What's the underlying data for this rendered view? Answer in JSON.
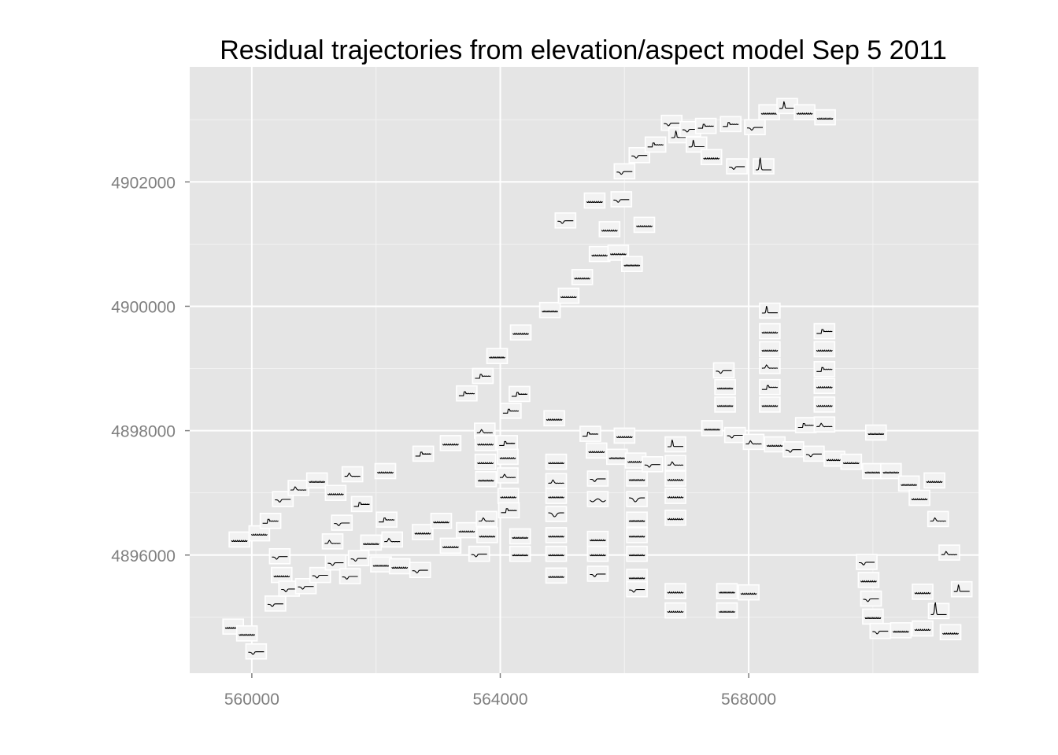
{
  "chart_data": {
    "type": "scatter",
    "subtype": "glyph-map",
    "title": "Residual trajectories from elevation/aspect model Sep 5 2011",
    "xlabel": "",
    "ylabel": "",
    "xlim": [
      559000,
      571700
    ],
    "ylim": [
      4894100,
      4903850
    ],
    "x_ticks": [
      560000,
      564000,
      568000
    ],
    "x_tick_labels": [
      "560000",
      "564000",
      "568000"
    ],
    "y_ticks": [
      4896000,
      4898000,
      4900000,
      4902000
    ],
    "y_tick_labels": [
      "4896000",
      "4898000",
      "4900000",
      "4902000"
    ],
    "grid": true,
    "legend": "none",
    "colors": {
      "panel": "#e5e5e5",
      "grid": "#ffffff",
      "glyph_box": "#f2f2f2",
      "line": "#000000",
      "tick_text": "#7f7f7f"
    },
    "glyph_shapes": [
      "flat",
      "dip",
      "bump",
      "spike",
      "bigspike",
      "step",
      "vdip",
      "wave"
    ],
    "points": [
      {
        "x": 559700,
        "y": 4894850,
        "s": "flat"
      },
      {
        "x": 559920,
        "y": 4894740,
        "s": "flat"
      },
      {
        "x": 560070,
        "y": 4894450,
        "s": "dip"
      },
      {
        "x": 559800,
        "y": 4896250,
        "s": "flat"
      },
      {
        "x": 560120,
        "y": 4896350,
        "s": "flat"
      },
      {
        "x": 560300,
        "y": 4896550,
        "s": "step"
      },
      {
        "x": 560380,
        "y": 4895220,
        "s": "dip"
      },
      {
        "x": 560450,
        "y": 4895980,
        "s": "dip"
      },
      {
        "x": 560480,
        "y": 4895680,
        "s": "flat"
      },
      {
        "x": 560600,
        "y": 4895460,
        "s": "dip"
      },
      {
        "x": 560870,
        "y": 4895500,
        "s": "dip"
      },
      {
        "x": 561100,
        "y": 4895680,
        "s": "dip"
      },
      {
        "x": 560500,
        "y": 4896900,
        "s": "dip"
      },
      {
        "x": 560750,
        "y": 4897080,
        "s": "bump"
      },
      {
        "x": 561050,
        "y": 4897200,
        "s": "flat"
      },
      {
        "x": 561350,
        "y": 4897000,
        "s": "flat"
      },
      {
        "x": 561300,
        "y": 4896220,
        "s": "bump"
      },
      {
        "x": 561350,
        "y": 4895880,
        "s": "dip"
      },
      {
        "x": 561450,
        "y": 4896520,
        "s": "dip"
      },
      {
        "x": 561580,
        "y": 4895660,
        "s": "dip"
      },
      {
        "x": 561620,
        "y": 4897300,
        "s": "bump"
      },
      {
        "x": 561770,
        "y": 4896820,
        "s": "step"
      },
      {
        "x": 561720,
        "y": 4895950,
        "s": "dip"
      },
      {
        "x": 561920,
        "y": 4896200,
        "s": "flat"
      },
      {
        "x": 562080,
        "y": 4895850,
        "s": "flat"
      },
      {
        "x": 562150,
        "y": 4897350,
        "s": "flat"
      },
      {
        "x": 562170,
        "y": 4896570,
        "s": "step"
      },
      {
        "x": 562260,
        "y": 4896250,
        "s": "bump"
      },
      {
        "x": 562380,
        "y": 4895820,
        "s": "flat"
      },
      {
        "x": 562710,
        "y": 4895760,
        "s": "dip"
      },
      {
        "x": 562750,
        "y": 4896370,
        "s": "flat"
      },
      {
        "x": 562760,
        "y": 4897630,
        "s": "step"
      },
      {
        "x": 563050,
        "y": 4896550,
        "s": "flat"
      },
      {
        "x": 563200,
        "y": 4897800,
        "s": "flat"
      },
      {
        "x": 563200,
        "y": 4896150,
        "s": "flat"
      },
      {
        "x": 563460,
        "y": 4896400,
        "s": "flat"
      },
      {
        "x": 563460,
        "y": 4898600,
        "s": "step"
      },
      {
        "x": 563660,
        "y": 4896020,
        "s": "dip"
      },
      {
        "x": 563720,
        "y": 4898880,
        "s": "step"
      },
      {
        "x": 563750,
        "y": 4898000,
        "s": "bump"
      },
      {
        "x": 563760,
        "y": 4897800,
        "s": "flat"
      },
      {
        "x": 563760,
        "y": 4897500,
        "s": "flat"
      },
      {
        "x": 563770,
        "y": 4897220,
        "s": "flat"
      },
      {
        "x": 563780,
        "y": 4896580,
        "s": "bump"
      },
      {
        "x": 563790,
        "y": 4896320,
        "s": "flat"
      },
      {
        "x": 563950,
        "y": 4899200,
        "s": "flat"
      },
      {
        "x": 564110,
        "y": 4897800,
        "s": "step"
      },
      {
        "x": 564120,
        "y": 4897580,
        "s": "flat"
      },
      {
        "x": 564120,
        "y": 4897280,
        "s": "bump"
      },
      {
        "x": 564130,
        "y": 4896950,
        "s": "flat"
      },
      {
        "x": 564140,
        "y": 4896720,
        "s": "step"
      },
      {
        "x": 564170,
        "y": 4898320,
        "s": "step"
      },
      {
        "x": 564310,
        "y": 4898590,
        "s": "step"
      },
      {
        "x": 564330,
        "y": 4899580,
        "s": "flat"
      },
      {
        "x": 564320,
        "y": 4896300,
        "s": "flat"
      },
      {
        "x": 564320,
        "y": 4896020,
        "s": "flat"
      },
      {
        "x": 564800,
        "y": 4899940,
        "s": "flat"
      },
      {
        "x": 564870,
        "y": 4898200,
        "s": "flat"
      },
      {
        "x": 564900,
        "y": 4897500,
        "s": "flat"
      },
      {
        "x": 564900,
        "y": 4897190,
        "s": "bump"
      },
      {
        "x": 564900,
        "y": 4896950,
        "s": "flat"
      },
      {
        "x": 564900,
        "y": 4896660,
        "s": "vdip"
      },
      {
        "x": 564900,
        "y": 4896320,
        "s": "flat"
      },
      {
        "x": 564900,
        "y": 4896020,
        "s": "flat"
      },
      {
        "x": 564900,
        "y": 4895670,
        "s": "flat"
      },
      {
        "x": 565050,
        "y": 4901380,
        "s": "dip"
      },
      {
        "x": 565100,
        "y": 4900170,
        "s": "flat"
      },
      {
        "x": 565320,
        "y": 4900470,
        "s": "flat"
      },
      {
        "x": 565450,
        "y": 4897950,
        "s": "step"
      },
      {
        "x": 565520,
        "y": 4901700,
        "s": "flat"
      },
      {
        "x": 565550,
        "y": 4897680,
        "s": "flat"
      },
      {
        "x": 565570,
        "y": 4897230,
        "s": "dip"
      },
      {
        "x": 565570,
        "y": 4896900,
        "s": "wave"
      },
      {
        "x": 565570,
        "y": 4896260,
        "s": "flat"
      },
      {
        "x": 565570,
        "y": 4896020,
        "s": "flat"
      },
      {
        "x": 565570,
        "y": 4895700,
        "s": "dip"
      },
      {
        "x": 565600,
        "y": 4900840,
        "s": "flat"
      },
      {
        "x": 565760,
        "y": 4901240,
        "s": "flat"
      },
      {
        "x": 565880,
        "y": 4897580,
        "s": "flat"
      },
      {
        "x": 565900,
        "y": 4900860,
        "s": "flat"
      },
      {
        "x": 565950,
        "y": 4901720,
        "s": "dip"
      },
      {
        "x": 566000,
        "y": 4902170,
        "s": "dip"
      },
      {
        "x": 566000,
        "y": 4897920,
        "s": "flat"
      },
      {
        "x": 566120,
        "y": 4900680,
        "s": "flat"
      },
      {
        "x": 566180,
        "y": 4897520,
        "s": "flat"
      },
      {
        "x": 566200,
        "y": 4897230,
        "s": "flat"
      },
      {
        "x": 566200,
        "y": 4896900,
        "s": "vdip"
      },
      {
        "x": 566200,
        "y": 4896570,
        "s": "flat"
      },
      {
        "x": 566200,
        "y": 4896320,
        "s": "flat"
      },
      {
        "x": 566200,
        "y": 4896020,
        "s": "flat"
      },
      {
        "x": 566200,
        "y": 4895650,
        "s": "flat"
      },
      {
        "x": 566200,
        "y": 4895450,
        "s": "dip"
      },
      {
        "x": 566240,
        "y": 4902430,
        "s": "dip"
      },
      {
        "x": 566320,
        "y": 4901310,
        "s": "flat"
      },
      {
        "x": 566450,
        "y": 4897460,
        "s": "dip"
      },
      {
        "x": 566500,
        "y": 4902600,
        "s": "step"
      },
      {
        "x": 566760,
        "y": 4902950,
        "s": "dip"
      },
      {
        "x": 566880,
        "y": 4902750,
        "s": "spike"
      },
      {
        "x": 566820,
        "y": 4897780,
        "s": "spike"
      },
      {
        "x": 566820,
        "y": 4897480,
        "s": "bump"
      },
      {
        "x": 566820,
        "y": 4897230,
        "s": "flat"
      },
      {
        "x": 566820,
        "y": 4896950,
        "s": "flat"
      },
      {
        "x": 566820,
        "y": 4896600,
        "s": "flat"
      },
      {
        "x": 566820,
        "y": 4895420,
        "s": "flat"
      },
      {
        "x": 566820,
        "y": 4895110,
        "s": "flat"
      },
      {
        "x": 567060,
        "y": 4902850,
        "s": "dip"
      },
      {
        "x": 567160,
        "y": 4902600,
        "s": "spike"
      },
      {
        "x": 567310,
        "y": 4902900,
        "s": "step"
      },
      {
        "x": 567400,
        "y": 4902400,
        "s": "flat"
      },
      {
        "x": 567410,
        "y": 4898040,
        "s": "flat"
      },
      {
        "x": 567600,
        "y": 4898970,
        "s": "dip"
      },
      {
        "x": 567620,
        "y": 4898700,
        "s": "flat"
      },
      {
        "x": 567620,
        "y": 4898420,
        "s": "flat"
      },
      {
        "x": 567650,
        "y": 4895420,
        "s": "flat"
      },
      {
        "x": 567650,
        "y": 4895110,
        "s": "flat"
      },
      {
        "x": 567710,
        "y": 4902930,
        "s": "step"
      },
      {
        "x": 567780,
        "y": 4897930,
        "s": "dip"
      },
      {
        "x": 567810,
        "y": 4902250,
        "s": "dip"
      },
      {
        "x": 568000,
        "y": 4895400,
        "s": "flat"
      },
      {
        "x": 568100,
        "y": 4902880,
        "s": "dip"
      },
      {
        "x": 568080,
        "y": 4897820,
        "s": "bump"
      },
      {
        "x": 568240,
        "y": 4902250,
        "s": "bigspike"
      },
      {
        "x": 568330,
        "y": 4903120,
        "s": "flat"
      },
      {
        "x": 568340,
        "y": 4899930,
        "s": "spike"
      },
      {
        "x": 568340,
        "y": 4899600,
        "s": "flat"
      },
      {
        "x": 568340,
        "y": 4899310,
        "s": "flat"
      },
      {
        "x": 568340,
        "y": 4899040,
        "s": "bump"
      },
      {
        "x": 568340,
        "y": 4898700,
        "s": "step"
      },
      {
        "x": 568340,
        "y": 4898420,
        "s": "flat"
      },
      {
        "x": 568420,
        "y": 4897780,
        "s": "flat"
      },
      {
        "x": 568620,
        "y": 4903220,
        "s": "spike"
      },
      {
        "x": 568720,
        "y": 4897700,
        "s": "dip"
      },
      {
        "x": 568900,
        "y": 4903120,
        "s": "flat"
      },
      {
        "x": 568920,
        "y": 4898090,
        "s": "step"
      },
      {
        "x": 569050,
        "y": 4897630,
        "s": "dip"
      },
      {
        "x": 569230,
        "y": 4903040,
        "s": "flat"
      },
      {
        "x": 569220,
        "y": 4899600,
        "s": "step"
      },
      {
        "x": 569220,
        "y": 4899310,
        "s": "flat"
      },
      {
        "x": 569220,
        "y": 4898990,
        "s": "step"
      },
      {
        "x": 569220,
        "y": 4898720,
        "s": "flat"
      },
      {
        "x": 569220,
        "y": 4898420,
        "s": "flat"
      },
      {
        "x": 569220,
        "y": 4898100,
        "s": "bump"
      },
      {
        "x": 569380,
        "y": 4897550,
        "s": "flat"
      },
      {
        "x": 569650,
        "y": 4897500,
        "s": "flat"
      },
      {
        "x": 570000,
        "y": 4897350,
        "s": "flat"
      },
      {
        "x": 569900,
        "y": 4895890,
        "s": "dip"
      },
      {
        "x": 569930,
        "y": 4895600,
        "s": "flat"
      },
      {
        "x": 569970,
        "y": 4895300,
        "s": "dip"
      },
      {
        "x": 570000,
        "y": 4895010,
        "s": "flat"
      },
      {
        "x": 570050,
        "y": 4897970,
        "s": "flat"
      },
      {
        "x": 570120,
        "y": 4894780,
        "s": "dip"
      },
      {
        "x": 570290,
        "y": 4897350,
        "s": "flat"
      },
      {
        "x": 570450,
        "y": 4894790,
        "s": "flat"
      },
      {
        "x": 570580,
        "y": 4897150,
        "s": "flat"
      },
      {
        "x": 570750,
        "y": 4896920,
        "s": "flat"
      },
      {
        "x": 570800,
        "y": 4894820,
        "s": "flat"
      },
      {
        "x": 570800,
        "y": 4895410,
        "s": "flat"
      },
      {
        "x": 570990,
        "y": 4897200,
        "s": "flat"
      },
      {
        "x": 571060,
        "y": 4895100,
        "s": "bigspike"
      },
      {
        "x": 571050,
        "y": 4896580,
        "s": "bump"
      },
      {
        "x": 571230,
        "y": 4896040,
        "s": "bump"
      },
      {
        "x": 571250,
        "y": 4894760,
        "s": "flat"
      },
      {
        "x": 571430,
        "y": 4895450,
        "s": "spike"
      }
    ]
  }
}
